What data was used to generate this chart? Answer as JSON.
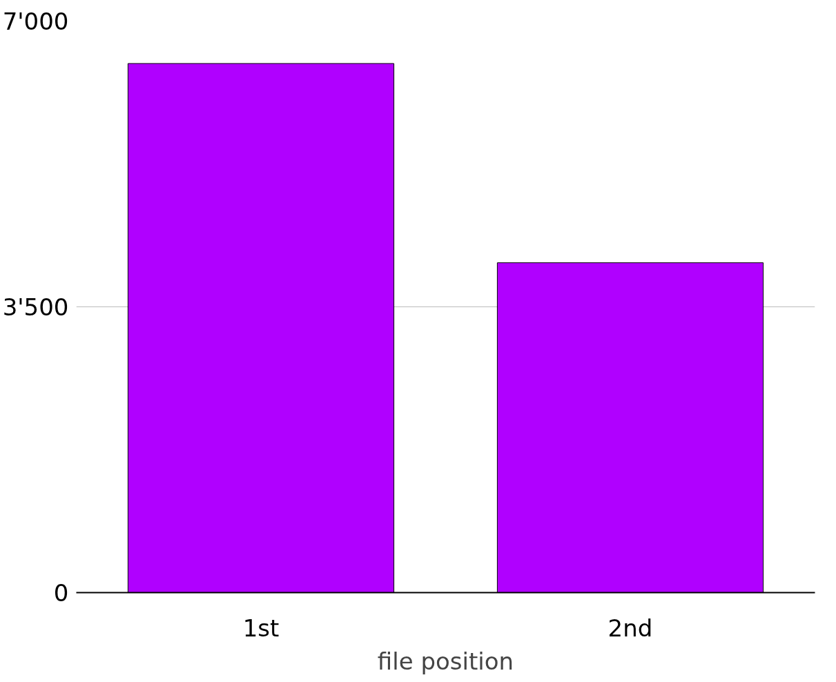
{
  "chart_data": {
    "type": "bar",
    "xlabel": "file position",
    "categories": [
      "1st",
      "2nd"
    ],
    "values": [
      6480,
      4040
    ],
    "color": "#b000ff",
    "ylim": [
      0,
      7000
    ],
    "yticks": [
      {
        "value": 0,
        "label": "0"
      },
      {
        "value": 3500,
        "label": "3'500"
      },
      {
        "value": 7000,
        "label": "7'000"
      }
    ],
    "grid": "y"
  }
}
